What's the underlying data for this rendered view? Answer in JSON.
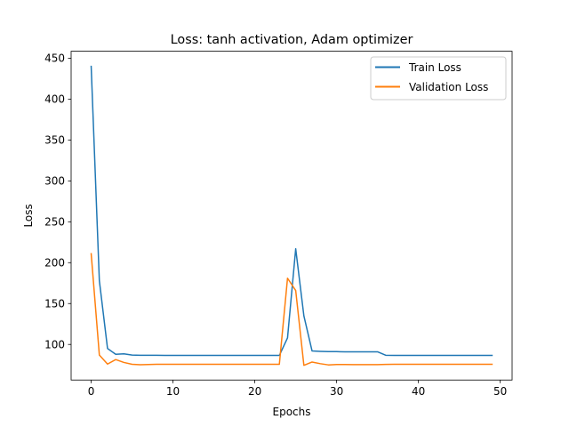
{
  "chart_data": {
    "type": "line",
    "title": "Loss: tanh activation, Adam optimizer",
    "xlabel": "Epochs",
    "ylabel": "Loss",
    "xlim": [
      -2.45,
      51.45
    ],
    "ylim": [
      56.5,
      458.5
    ],
    "xticks": [
      0,
      10,
      20,
      30,
      40,
      50
    ],
    "yticks": [
      100,
      150,
      200,
      250,
      300,
      350,
      400,
      450
    ],
    "grid": false,
    "legend_position": "top-right",
    "x": [
      0,
      1,
      2,
      3,
      4,
      5,
      6,
      7,
      8,
      9,
      10,
      11,
      12,
      13,
      14,
      15,
      16,
      17,
      18,
      19,
      20,
      21,
      22,
      23,
      24,
      25,
      26,
      27,
      28,
      29,
      30,
      31,
      32,
      33,
      34,
      35,
      36,
      37,
      38,
      39,
      40,
      41,
      42,
      43,
      44,
      45,
      46,
      47,
      48,
      49
    ],
    "series": [
      {
        "name": "Train Loss",
        "color": "#1f77b4",
        "values": [
          440,
          178,
          95,
          88,
          88.5,
          87,
          86.8,
          86.7,
          86.7,
          86.6,
          86.6,
          86.6,
          86.6,
          86.6,
          86.6,
          86.6,
          86.6,
          86.6,
          86.6,
          86.6,
          86.6,
          86.6,
          86.6,
          86.6,
          108,
          217,
          135,
          92,
          91.5,
          91.2,
          91.2,
          91,
          91,
          91,
          91,
          91,
          86.8,
          86.6,
          86.6,
          86.6,
          86.6,
          86.6,
          86.6,
          86.6,
          86.6,
          86.6,
          86.6,
          86.6,
          86.6,
          86.6
        ]
      },
      {
        "name": "Validation Loss",
        "color": "#ff7f0e",
        "values": [
          211,
          87,
          76,
          81.5,
          78,
          75.8,
          75.2,
          75.5,
          75.8,
          75.8,
          75.7,
          75.7,
          75.7,
          75.7,
          75.7,
          75.7,
          75.7,
          75.7,
          75.7,
          75.7,
          75.8,
          75.7,
          75.7,
          75.7,
          181,
          166,
          74.5,
          78.5,
          76.5,
          75,
          75.5,
          75.5,
          75.3,
          75.3,
          75.3,
          75.4,
          75.6,
          75.8,
          75.7,
          75.7,
          75.7,
          75.7,
          75.7,
          75.7,
          75.7,
          75.7,
          75.7,
          75.7,
          75.7,
          75.7
        ]
      }
    ]
  }
}
